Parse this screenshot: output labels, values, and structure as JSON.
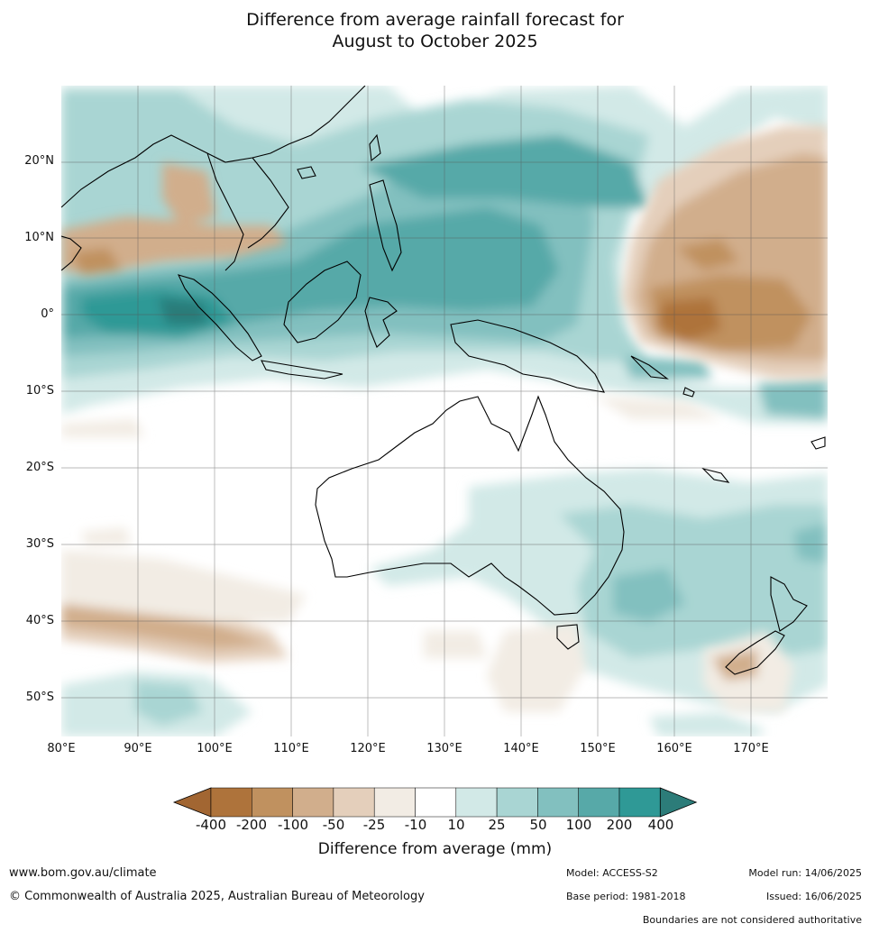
{
  "title_line1": "Difference from average rainfall forecast for",
  "title_line2": "August to October 2025",
  "axes": {
    "lat_ticks": [
      "20°N",
      "10°N",
      "0°",
      "10°S",
      "20°S",
      "30°S",
      "40°S",
      "50°S"
    ],
    "lon_ticks": [
      "80°E",
      "90°E",
      "100°E",
      "110°E",
      "120°E",
      "130°E",
      "140°E",
      "150°E",
      "160°E",
      "170°E"
    ]
  },
  "colorbar": {
    "title": "Difference from average (mm)",
    "labels": [
      "-400",
      "-200",
      "-100",
      "-50",
      "-25",
      "-10",
      "10",
      "25",
      "50",
      "100",
      "200",
      "400"
    ],
    "colors": [
      "#a26632",
      "#ae733b",
      "#c0915f",
      "#d1ae8c",
      "#e4cfbb",
      "#f2ece4",
      "#ffffff",
      "#d2e9e7",
      "#a9d5d3",
      "#82c0bf",
      "#57a9a8",
      "#2f9996",
      "#2c7c79"
    ]
  },
  "footer": {
    "url": "www.bom.gov.au/climate",
    "copyright": "© Commonwealth of Australia 2025, Australian Bureau of Meteorology",
    "model": "Model: ACCESS-S2",
    "base_period": "Base period: 1981-2018",
    "model_run": "Model run: 14/06/2025",
    "issued": "Issued: 16/06/2025",
    "disclaimer": "Boundaries are not considered authoritative"
  }
}
